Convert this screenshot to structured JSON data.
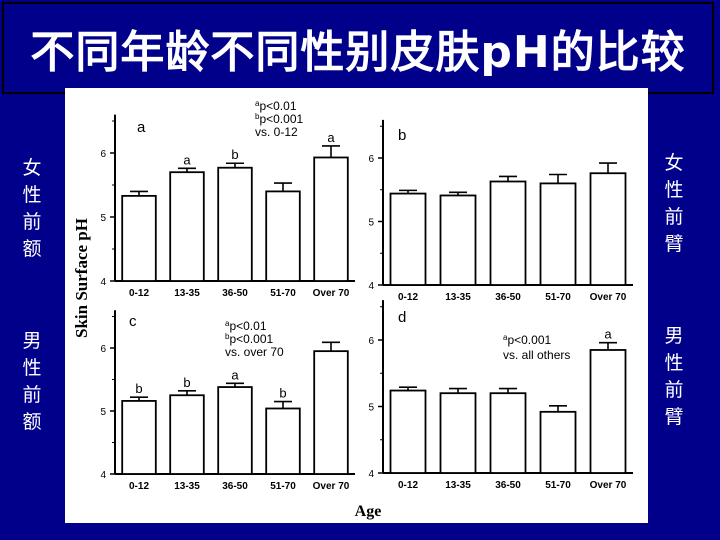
{
  "slide": {
    "title": "不同年龄不同性别皮肤pH的比较",
    "labels": {
      "top_left": "女性前额",
      "top_right": "女性前臂",
      "bottom_left": "男性前额",
      "bottom_right": "男性前臂"
    }
  },
  "figure": {
    "ylabel": "Skin Surface pH",
    "xlabel": "Age"
  },
  "colors": {
    "background": "#00008b",
    "figure_bg": "#ffffff",
    "bars": "#ffffff",
    "ink": "#000000"
  },
  "chart_data": [
    {
      "type": "bar",
      "panel": "a",
      "categories": [
        "0-12",
        "13-35",
        "36-50",
        "51-70",
        "Over 70"
      ],
      "values": [
        5.33,
        5.7,
        5.77,
        5.4,
        5.93
      ],
      "errors": [
        0.07,
        0.06,
        0.07,
        0.13,
        0.18
      ],
      "bar_labels": [
        "",
        "a",
        "b",
        "",
        "a"
      ],
      "annotation": [
        "ap<0.01",
        "bp<0.001",
        "vs. 0-12"
      ],
      "ylim": [
        4,
        6.6
      ],
      "yticks": [
        4,
        5,
        6
      ]
    },
    {
      "type": "bar",
      "panel": "b",
      "categories": [
        "0-12",
        "13-35",
        "36-50",
        "51-70",
        "Over 70"
      ],
      "values": [
        5.44,
        5.41,
        5.63,
        5.6,
        5.76
      ],
      "errors": [
        0.05,
        0.05,
        0.08,
        0.14,
        0.16
      ],
      "bar_labels": [
        "",
        "",
        "",
        "",
        ""
      ],
      "annotation": [],
      "ylim": [
        4,
        6.6
      ],
      "yticks": [
        4,
        5,
        6
      ]
    },
    {
      "type": "bar",
      "panel": "c",
      "categories": [
        "0-12",
        "13-35",
        "36-50",
        "51-70",
        "Over 70"
      ],
      "values": [
        5.16,
        5.25,
        5.38,
        5.04,
        5.95
      ],
      "errors": [
        0.06,
        0.07,
        0.06,
        0.11,
        0.14
      ],
      "bar_labels": [
        "b",
        "b",
        "a",
        "b",
        ""
      ],
      "annotation": [
        "ap<0.01",
        "bp<0.001",
        "vs. over 70"
      ],
      "ylim": [
        4,
        6.6
      ],
      "yticks": [
        4,
        5,
        6
      ]
    },
    {
      "type": "bar",
      "panel": "d",
      "categories": [
        "0-12",
        "13-35",
        "36-50",
        "51-70",
        "Over 70"
      ],
      "values": [
        5.24,
        5.2,
        5.2,
        4.92,
        5.85
      ],
      "errors": [
        0.05,
        0.07,
        0.07,
        0.09,
        0.11
      ],
      "bar_labels": [
        "",
        "",
        "",
        "",
        "a"
      ],
      "annotation": [
        "ap<0.001",
        "vs. all others"
      ],
      "ylim": [
        4,
        6.6
      ],
      "yticks": [
        4,
        5,
        6
      ]
    }
  ]
}
